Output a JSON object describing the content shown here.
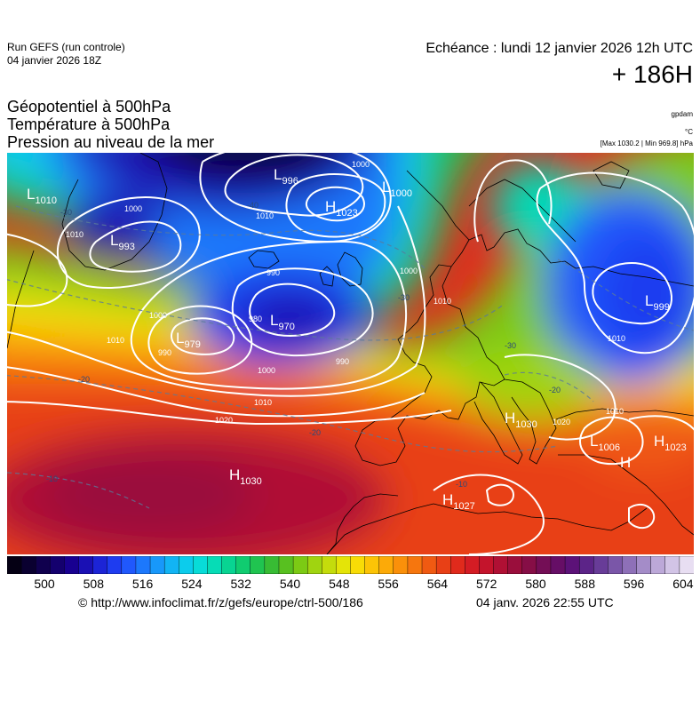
{
  "header": {
    "run_title": "Run GEFS (run controle)",
    "run_date": "04 janvier 2026 18Z",
    "valid_label": "Echéance : lundi 12 janvier 2026 12h UTC",
    "lead_time": "+ 186H",
    "variables": [
      "Géopotentiel à 500hPa",
      "Température à 500hPa",
      "Pression au niveau de la mer"
    ],
    "unit_geopotential": "gpdam",
    "unit_temperature": "°C",
    "extrema": "[Max 1030.2 | Min 969.8] hPa"
  },
  "pressure_centers": [
    {
      "type": "L",
      "value": "1010"
    },
    {
      "type": "L",
      "value": "996"
    },
    {
      "type": "H",
      "value": "1023"
    },
    {
      "type": "L",
      "value": "1000"
    },
    {
      "type": "L",
      "value": "993"
    },
    {
      "type": "L",
      "value": "970"
    },
    {
      "type": "L",
      "value": "979"
    },
    {
      "type": "L",
      "value": "999"
    },
    {
      "type": "H",
      "value": "1030"
    },
    {
      "type": "H",
      "value": "1030"
    },
    {
      "type": "L",
      "value": "1006"
    },
    {
      "type": "H",
      "value": "1023"
    },
    {
      "type": "H",
      "value": "1027"
    },
    {
      "type": "H",
      "value": ""
    }
  ],
  "isobar_labels": [
    "1000",
    "1010",
    "1000",
    "1010",
    "990",
    "1000",
    "1010",
    "1020",
    "980",
    "990",
    "1000",
    "1010",
    "1010",
    "1010",
    "1020",
    "990",
    "1000",
    "1010"
  ],
  "temperature_labels": [
    "-40",
    "-30",
    "-30",
    "-20",
    "-20",
    "-10",
    "-10",
    "-20",
    "-30"
  ],
  "colorbar": {
    "ticks": [
      "500",
      "508",
      "516",
      "524",
      "532",
      "540",
      "548",
      "556",
      "564",
      "572",
      "580",
      "588",
      "596",
      "604"
    ],
    "colors": [
      "#050014",
      "#0a0030",
      "#10004e",
      "#14006e",
      "#180090",
      "#1a10b4",
      "#1c24d6",
      "#1e3cf0",
      "#2058fc",
      "#1c78fc",
      "#1898fa",
      "#12b4f4",
      "#0cccec",
      "#08dcd8",
      "#06dcb6",
      "#08d492",
      "#10cc70",
      "#20c450",
      "#38bc34",
      "#58c020",
      "#7cca14",
      "#a0d410",
      "#c4dc0c",
      "#e4e408",
      "#f8dc06",
      "#fcc406",
      "#fcaa08",
      "#fa900a",
      "#f6760e",
      "#f05a12",
      "#e84016",
      "#e02a1c",
      "#d41c24",
      "#c4142c",
      "#b01034",
      "#9a0e3c",
      "#860e46",
      "#740e56",
      "#660e66",
      "#5c1278",
      "#5c2488",
      "#683c98",
      "#7a56a8",
      "#8e70b8",
      "#a48cc8",
      "#bca8d8",
      "#d2c4e6",
      "#e8def2"
    ]
  },
  "footer": {
    "copyright": "© http://www.infoclimat.fr/z/gefs/europe/ctrl-500/186",
    "issued": "04 janv. 2026 22:55 UTC"
  }
}
